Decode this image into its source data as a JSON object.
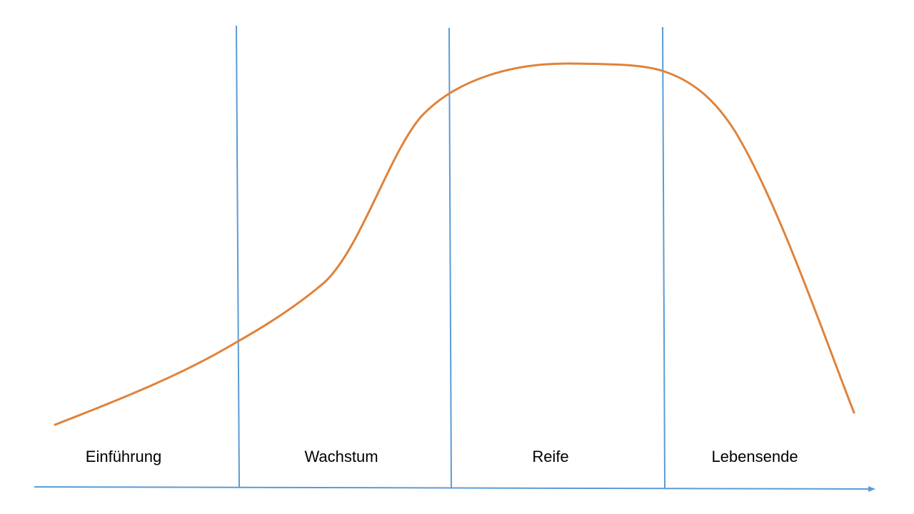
{
  "diagram": {
    "phases": [
      {
        "label": "Einführung"
      },
      {
        "label": "Wachstum"
      },
      {
        "label": "Reife"
      },
      {
        "label": "Lebensende"
      }
    ],
    "colors": {
      "curve": "#e0823a",
      "divider": "#5b9bd5",
      "axis": "#5b9bd5",
      "label": "#000000",
      "background": "#ffffff"
    }
  }
}
